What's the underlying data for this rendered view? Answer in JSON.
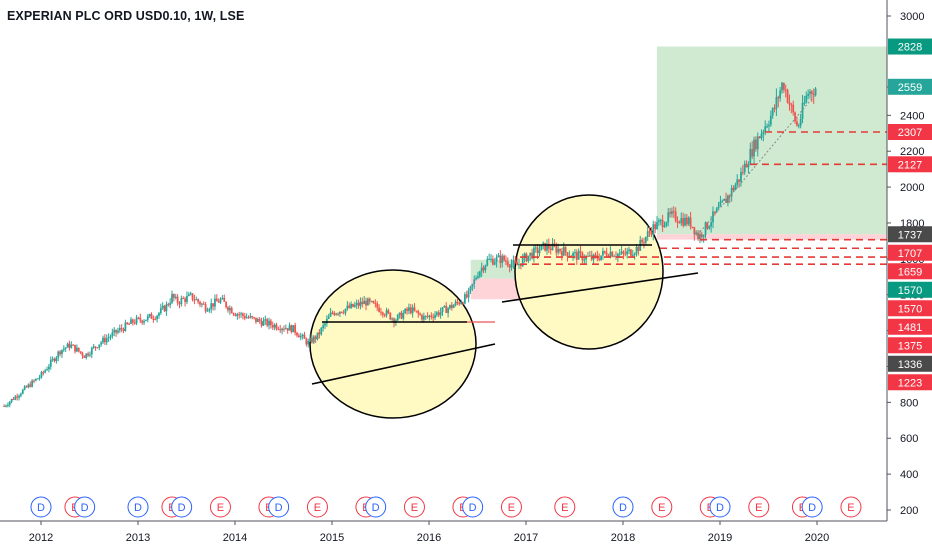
{
  "header": {
    "title": "EXPERIAN PLC ORD USD0.10, 1W, LSE"
  },
  "chart_data": {
    "type": "candlestick",
    "title": "EXPERIAN PLC ORD USD0.10, 1W, LSE",
    "xlabel": "",
    "ylabel": "",
    "x_ticks": [
      "2012",
      "2013",
      "2014",
      "2015",
      "2016",
      "2017",
      "2018",
      "2019",
      "2020"
    ],
    "y_ticks": [
      200,
      400,
      600,
      800,
      1000,
      1200,
      1400,
      1600,
      1800,
      2000,
      2200,
      2400,
      2600,
      3000
    ],
    "ylim": [
      150,
      3150
    ],
    "x_range": [
      2011.6,
      2020.7
    ],
    "price_path": [
      [
        2011.62,
        780
      ],
      [
        2011.8,
        860
      ],
      [
        2012.0,
        950
      ],
      [
        2012.2,
        1090
      ],
      [
        2012.3,
        1120
      ],
      [
        2012.45,
        1060
      ],
      [
        2012.6,
        1130
      ],
      [
        2012.8,
        1200
      ],
      [
        2012.95,
        1250
      ],
      [
        2013.1,
        1270
      ],
      [
        2013.2,
        1290
      ],
      [
        2013.3,
        1340
      ],
      [
        2013.35,
        1390
      ],
      [
        2013.4,
        1360
      ],
      [
        2013.55,
        1390
      ],
      [
        2013.7,
        1330
      ],
      [
        2013.85,
        1370
      ],
      [
        2014.0,
        1300
      ],
      [
        2014.2,
        1260
      ],
      [
        2014.4,
        1230
      ],
      [
        2014.6,
        1210
      ],
      [
        2014.75,
        1130
      ],
      [
        2014.85,
        1170
      ],
      [
        2015.0,
        1300
      ],
      [
        2015.2,
        1330
      ],
      [
        2015.35,
        1360
      ],
      [
        2015.5,
        1320
      ],
      [
        2015.65,
        1260
      ],
      [
        2015.8,
        1320
      ],
      [
        2015.95,
        1270
      ],
      [
        2016.1,
        1300
      ],
      [
        2016.25,
        1340
      ],
      [
        2016.4,
        1390
      ],
      [
        2016.5,
        1520
      ],
      [
        2016.6,
        1590
      ],
      [
        2016.75,
        1600
      ],
      [
        2016.9,
        1560
      ],
      [
        2017.0,
        1610
      ],
      [
        2017.2,
        1670
      ],
      [
        2017.35,
        1650
      ],
      [
        2017.5,
        1620
      ],
      [
        2017.7,
        1600
      ],
      [
        2017.85,
        1640
      ],
      [
        2018.0,
        1620
      ],
      [
        2018.15,
        1660
      ],
      [
        2018.3,
        1770
      ],
      [
        2018.5,
        1840
      ],
      [
        2018.7,
        1800
      ],
      [
        2018.78,
        1720
      ],
      [
        2018.95,
        1850
      ],
      [
        2019.05,
        1920
      ],
      [
        2019.2,
        2050
      ],
      [
        2019.35,
        2230
      ],
      [
        2019.45,
        2330
      ],
      [
        2019.55,
        2420
      ],
      [
        2019.65,
        2590
      ],
      [
        2019.72,
        2460
      ],
      [
        2019.8,
        2330
      ],
      [
        2019.9,
        2520
      ],
      [
        2020.0,
        2560
      ]
    ],
    "horizontal_levels": [
      2307,
      2127,
      1737,
      1707,
      1659,
      1570
    ],
    "price_labels": [
      {
        "value": 2828,
        "label": "2828",
        "color": "#089981"
      },
      {
        "value": 2559,
        "label": "2559",
        "color": "#26a69a"
      },
      {
        "value": 2307,
        "label": "2307",
        "color": "#f23645"
      },
      {
        "value": 2127,
        "label": "2127",
        "color": "#f23645"
      },
      {
        "value": 1737,
        "label": "1737",
        "color": "#4a4a4a"
      },
      {
        "value": 1707,
        "label": "1707",
        "color": "#f23645"
      },
      {
        "value": 1659,
        "label": "1659",
        "color": "#f23645"
      },
      {
        "value": 1570,
        "label": "1570",
        "color": "#089981"
      },
      {
        "value": 1570,
        "label": "1570",
        "color": "#f23645"
      },
      {
        "value": 1481,
        "label": "1481",
        "color": "#f23645"
      },
      {
        "value": 1375,
        "label": "1375",
        "color": "#f23645"
      },
      {
        "value": 1336,
        "label": "1336",
        "color": "#4a4a4a"
      },
      {
        "value": 1223,
        "label": "1223",
        "color": "#f23645"
      }
    ],
    "events": [
      {
        "type": "D",
        "x": 2012.0
      },
      {
        "type": "E",
        "x": 2012.35
      },
      {
        "type": "D",
        "x": 2012.45
      },
      {
        "type": "D",
        "x": 2013.0
      },
      {
        "type": "E",
        "x": 2013.35
      },
      {
        "type": "D",
        "x": 2013.45
      },
      {
        "type": "E",
        "x": 2013.85
      },
      {
        "type": "E",
        "x": 2014.35
      },
      {
        "type": "D",
        "x": 2014.45
      },
      {
        "type": "E",
        "x": 2014.85
      },
      {
        "type": "E",
        "x": 2015.35
      },
      {
        "type": "D",
        "x": 2015.45
      },
      {
        "type": "E",
        "x": 2015.85
      },
      {
        "type": "E",
        "x": 2016.35
      },
      {
        "type": "D",
        "x": 2016.45
      },
      {
        "type": "E",
        "x": 2016.85
      },
      {
        "type": "E",
        "x": 2017.4
      },
      {
        "type": "D",
        "x": 2018.0
      },
      {
        "type": "E",
        "x": 2018.4
      },
      {
        "type": "E",
        "x": 2018.9
      },
      {
        "type": "D",
        "x": 2019.0
      },
      {
        "type": "E",
        "x": 2019.4
      },
      {
        "type": "E",
        "x": 2019.85
      },
      {
        "type": "D",
        "x": 2019.95
      },
      {
        "type": "E",
        "x": 2020.35
      }
    ],
    "colors": {
      "up": "#26a69a",
      "down": "#ef5350",
      "circle_fill": "#fff9c4",
      "target_zone": "#c8e6c9",
      "stop_zone": "#ffcdd2"
    }
  }
}
